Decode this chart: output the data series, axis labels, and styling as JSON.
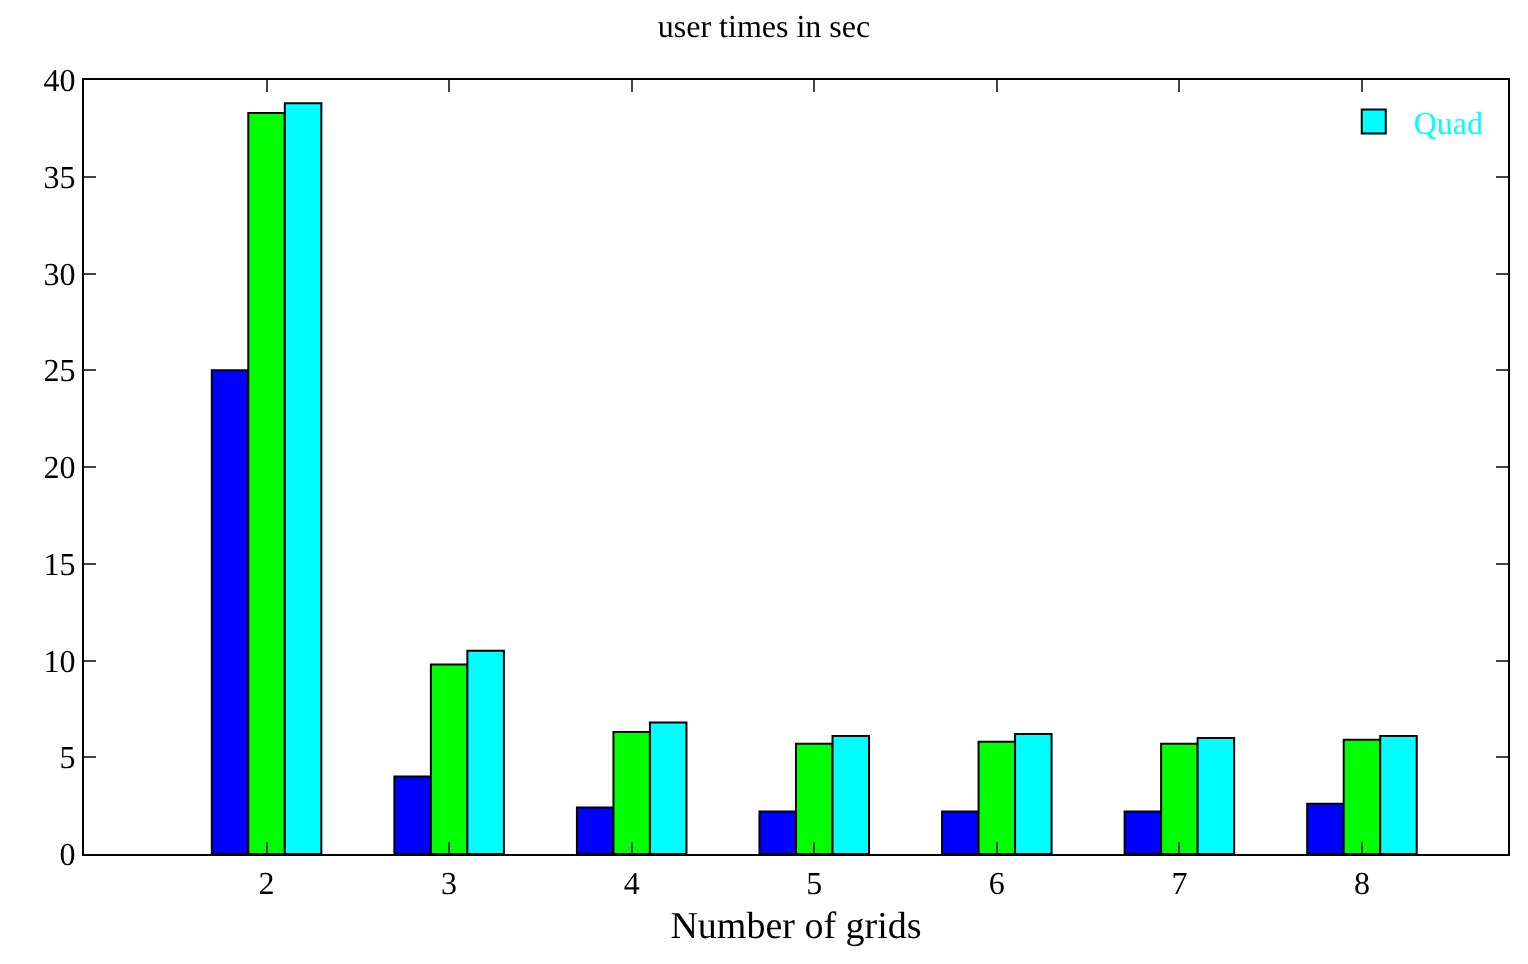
{
  "chart_data": {
    "type": "bar",
    "title": "user times in sec",
    "xlabel": "Number of grids",
    "categories": [
      "2",
      "3",
      "4",
      "5",
      "6",
      "7",
      "8"
    ],
    "series": [
      {
        "color": "#0000ff",
        "values": [
          25.0,
          4.0,
          2.4,
          2.2,
          2.2,
          2.2,
          2.6
        ]
      },
      {
        "color": "#00ff00",
        "values": [
          38.3,
          9.8,
          6.3,
          5.7,
          5.8,
          5.7,
          5.9
        ]
      },
      {
        "name": "Quad",
        "color": "#00ffff",
        "values": [
          38.8,
          10.5,
          6.8,
          6.1,
          6.2,
          6.0,
          6.1
        ]
      }
    ],
    "ylim": [
      0,
      40
    ],
    "yticks": [
      0,
      5,
      10,
      15,
      20,
      25,
      30,
      35,
      40
    ],
    "legend": "top right"
  }
}
